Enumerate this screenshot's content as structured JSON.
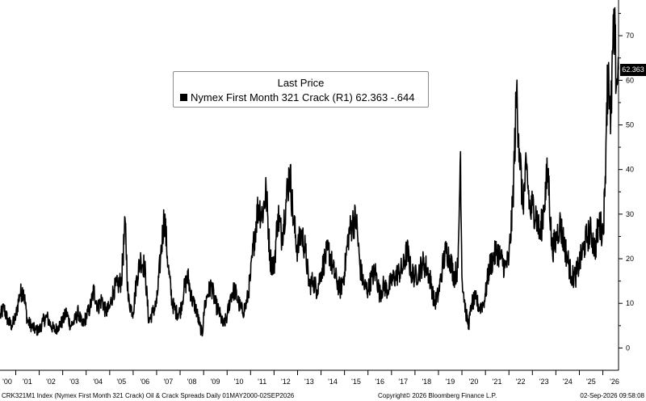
{
  "chart_data": {
    "type": "line",
    "title": "",
    "xlabel": "",
    "ylabel": "",
    "x_range": [
      "2000-05-01",
      "2026-09-02"
    ],
    "ylim": [
      -5,
      78
    ],
    "y_ticks": [
      0,
      10,
      20,
      30,
      40,
      50,
      60,
      70
    ],
    "y_axis_side": "right",
    "x_tick_labels": [
      "'00",
      "'01",
      "'02",
      "'03",
      "'04",
      "'05",
      "'06",
      "'07",
      "'08",
      "'09",
      "'10",
      "'11",
      "'12",
      "'13",
      "'14",
      "'15",
      "'16",
      "'17",
      "'18",
      "'19",
      "'20",
      "'21",
      "'22",
      "'23",
      "'24",
      "'25",
      "'26"
    ],
    "grid": false,
    "legend": {
      "placement": "top-center",
      "title": "Last Price",
      "entry": "Nymex First Month 321 Crack  (R1) 62.363  -.644"
    },
    "last_value_label": "62.363",
    "series": [
      {
        "color": "#000000",
        "points": [
          [
            "2000-05-01",
            7
          ],
          [
            "2000-07-01",
            9
          ],
          [
            "2000-09-01",
            6
          ],
          [
            "2000-11-01",
            5
          ],
          [
            "2001-01-01",
            7
          ],
          [
            "2001-03-01",
            12
          ],
          [
            "2001-05-01",
            13
          ],
          [
            "2001-07-01",
            6
          ],
          [
            "2001-09-01",
            5
          ],
          [
            "2001-11-01",
            4
          ],
          [
            "2002-01-01",
            4
          ],
          [
            "2002-03-01",
            6
          ],
          [
            "2002-05-01",
            7
          ],
          [
            "2002-07-01",
            5
          ],
          [
            "2002-09-01",
            4
          ],
          [
            "2002-11-01",
            5
          ],
          [
            "2003-01-01",
            6
          ],
          [
            "2003-03-01",
            8
          ],
          [
            "2003-05-01",
            5
          ],
          [
            "2003-07-01",
            6
          ],
          [
            "2003-09-01",
            8
          ],
          [
            "2003-11-01",
            5
          ],
          [
            "2004-01-01",
            7
          ],
          [
            "2004-03-01",
            9
          ],
          [
            "2004-05-01",
            13
          ],
          [
            "2004-07-01",
            9
          ],
          [
            "2004-09-01",
            11
          ],
          [
            "2004-11-01",
            8
          ],
          [
            "2005-01-01",
            9
          ],
          [
            "2005-03-01",
            13
          ],
          [
            "2005-05-01",
            14
          ],
          [
            "2005-07-01",
            15
          ],
          [
            "2005-09-01",
            28
          ],
          [
            "2005-10-15",
            11
          ],
          [
            "2005-12-01",
            9
          ],
          [
            "2006-01-01",
            8
          ],
          [
            "2006-03-01",
            16
          ],
          [
            "2006-05-01",
            20
          ],
          [
            "2006-07-01",
            18
          ],
          [
            "2006-09-01",
            6
          ],
          [
            "2006-11-01",
            8
          ],
          [
            "2007-01-01",
            10
          ],
          [
            "2007-03-01",
            20
          ],
          [
            "2007-05-01",
            30
          ],
          [
            "2007-07-01",
            18
          ],
          [
            "2007-09-01",
            10
          ],
          [
            "2007-11-01",
            8
          ],
          [
            "2008-01-01",
            8
          ],
          [
            "2008-03-01",
            13
          ],
          [
            "2008-05-01",
            16
          ],
          [
            "2008-07-01",
            11
          ],
          [
            "2008-09-01",
            9
          ],
          [
            "2008-11-01",
            5
          ],
          [
            "2008-12-15",
            3
          ],
          [
            "2009-01-01",
            8
          ],
          [
            "2009-03-01",
            12
          ],
          [
            "2009-05-01",
            14
          ],
          [
            "2009-07-01",
            10
          ],
          [
            "2009-09-01",
            8
          ],
          [
            "2009-11-01",
            5
          ],
          [
            "2010-01-01",
            7
          ],
          [
            "2010-03-01",
            12
          ],
          [
            "2010-05-01",
            13
          ],
          [
            "2010-07-01",
            10
          ],
          [
            "2010-09-01",
            8
          ],
          [
            "2010-11-01",
            10
          ],
          [
            "2011-01-01",
            16
          ],
          [
            "2011-03-01",
            25
          ],
          [
            "2011-05-01",
            32
          ],
          [
            "2011-07-01",
            30
          ],
          [
            "2011-09-01",
            35
          ],
          [
            "2011-11-01",
            20
          ],
          [
            "2012-01-01",
            18
          ],
          [
            "2012-03-01",
            30
          ],
          [
            "2012-05-01",
            25
          ],
          [
            "2012-07-01",
            32
          ],
          [
            "2012-09-01",
            40
          ],
          [
            "2012-11-01",
            28
          ],
          [
            "2013-01-01",
            22
          ],
          [
            "2013-03-01",
            26
          ],
          [
            "2013-05-01",
            22
          ],
          [
            "2013-07-01",
            14
          ],
          [
            "2013-09-01",
            15
          ],
          [
            "2013-11-01",
            13
          ],
          [
            "2014-01-01",
            17
          ],
          [
            "2014-03-01",
            20
          ],
          [
            "2014-05-01",
            22
          ],
          [
            "2014-07-01",
            18
          ],
          [
            "2014-09-01",
            15
          ],
          [
            "2014-11-01",
            13
          ],
          [
            "2015-01-01",
            17
          ],
          [
            "2015-03-01",
            25
          ],
          [
            "2015-05-01",
            28
          ],
          [
            "2015-07-01",
            29
          ],
          [
            "2015-09-01",
            18
          ],
          [
            "2015-11-01",
            14
          ],
          [
            "2016-01-01",
            13
          ],
          [
            "2016-03-01",
            16
          ],
          [
            "2016-05-01",
            17
          ],
          [
            "2016-07-01",
            12
          ],
          [
            "2016-09-01",
            14
          ],
          [
            "2016-11-01",
            13
          ],
          [
            "2017-01-01",
            15
          ],
          [
            "2017-03-01",
            16
          ],
          [
            "2017-05-01",
            17
          ],
          [
            "2017-07-01",
            18
          ],
          [
            "2017-09-01",
            22
          ],
          [
            "2017-11-01",
            17
          ],
          [
            "2018-01-01",
            16
          ],
          [
            "2018-03-01",
            17
          ],
          [
            "2018-05-01",
            19
          ],
          [
            "2018-07-01",
            18
          ],
          [
            "2018-09-01",
            15
          ],
          [
            "2018-11-01",
            10
          ],
          [
            "2019-01-01",
            12
          ],
          [
            "2019-03-01",
            18
          ],
          [
            "2019-05-01",
            22
          ],
          [
            "2019-07-01",
            20
          ],
          [
            "2019-09-01",
            16
          ],
          [
            "2019-11-01",
            18
          ],
          [
            "2019-12-10",
            44
          ],
          [
            "2020-01-01",
            16
          ],
          [
            "2020-03-01",
            8
          ],
          [
            "2020-04-15",
            5
          ],
          [
            "2020-06-01",
            10
          ],
          [
            "2020-08-01",
            11
          ],
          [
            "2020-10-01",
            9
          ],
          [
            "2020-12-01",
            10
          ],
          [
            "2021-01-01",
            12
          ],
          [
            "2021-03-01",
            18
          ],
          [
            "2021-05-01",
            20
          ],
          [
            "2021-07-01",
            22
          ],
          [
            "2021-09-01",
            20
          ],
          [
            "2021-11-01",
            18
          ],
          [
            "2022-01-01",
            20
          ],
          [
            "2022-03-01",
            32
          ],
          [
            "2022-05-01",
            58
          ],
          [
            "2022-06-01",
            48
          ],
          [
            "2022-08-01",
            32
          ],
          [
            "2022-10-01",
            40
          ],
          [
            "2022-12-01",
            30
          ],
          [
            "2023-01-01",
            32
          ],
          [
            "2023-03-01",
            30
          ],
          [
            "2023-05-01",
            25
          ],
          [
            "2023-07-01",
            32
          ],
          [
            "2023-09-01",
            40
          ],
          [
            "2023-11-01",
            22
          ],
          [
            "2024-01-01",
            24
          ],
          [
            "2024-03-01",
            28
          ],
          [
            "2024-05-01",
            24
          ],
          [
            "2024-07-01",
            20
          ],
          [
            "2024-09-01",
            16
          ],
          [
            "2024-11-01",
            16
          ],
          [
            "2025-01-01",
            19
          ],
          [
            "2025-03-01",
            22
          ],
          [
            "2025-05-01",
            25
          ],
          [
            "2025-07-01",
            26
          ],
          [
            "2025-09-01",
            22
          ],
          [
            "2025-11-01",
            28
          ],
          [
            "2026-01-01",
            26
          ],
          [
            "2026-02-01",
            34
          ],
          [
            "2026-03-01",
            55
          ],
          [
            "2026-04-01",
            64
          ],
          [
            "2026-05-01",
            48
          ],
          [
            "2026-06-01",
            66
          ],
          [
            "2026-07-01",
            70
          ],
          [
            "2026-08-01",
            60
          ],
          [
            "2026-09-02",
            62.363
          ]
        ]
      }
    ]
  },
  "footer": {
    "left": "CRK321M1 Index (Nymex First Month 321 Crack) Oil & Crack Spreads Daily 01MAY2000-02SEP2026",
    "center": "Copyright© 2026 Bloomberg Finance L.P.",
    "right": "02-Sep-2026 09:58:08"
  }
}
